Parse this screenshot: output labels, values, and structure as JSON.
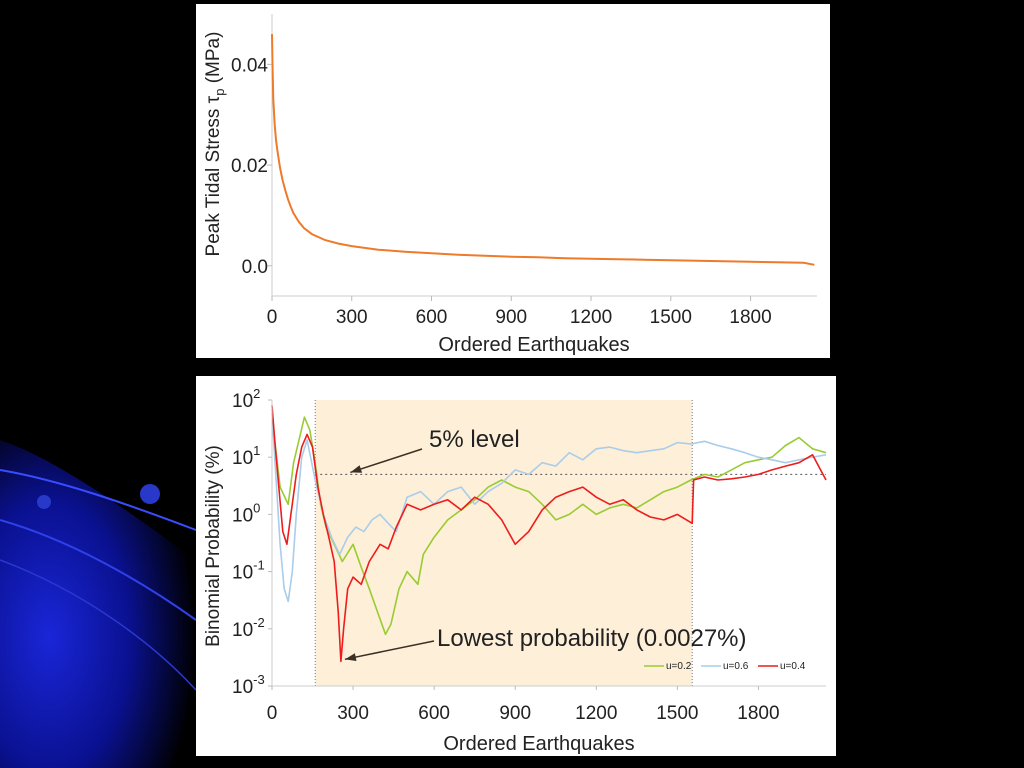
{
  "colors": {
    "background": "#000000",
    "stress_line": "#ee7a2a",
    "u02": "#99cc33",
    "u06": "#a9cdea",
    "u04": "#ee1c1c",
    "highlight": "#fdefd8",
    "arrow": "#3a3024"
  },
  "chart_data": [
    {
      "type": "line",
      "xlabel": "Ordered Earthquakes",
      "ylabel_main": "Peak Tidal Stress τ",
      "ylabel_sub": "p",
      "ylabel_unit": " (MPa)",
      "xlim": [
        0,
        2050
      ],
      "ylim": [
        -0.006,
        0.05
      ],
      "x_ticks": [
        0,
        300,
        600,
        900,
        1200,
        1500,
        1800
      ],
      "x_tick_labels": [
        "0",
        "300",
        "600",
        "900",
        "1200",
        "1500",
        "1800"
      ],
      "y_ticks": [
        0.0,
        0.02,
        0.04
      ],
      "y_tick_labels": [
        "0.0",
        "0.02",
        "0.04"
      ],
      "grid": false,
      "series": [
        {
          "color": "#ee7a2a",
          "x": [
            0,
            2,
            5,
            10,
            15,
            20,
            30,
            40,
            50,
            60,
            70,
            80,
            100,
            120,
            150,
            200,
            250,
            300,
            400,
            500,
            600,
            700,
            800,
            900,
            1000,
            1100,
            1200,
            1300,
            1400,
            1500,
            1600,
            1700,
            1800,
            1900,
            2000,
            2040
          ],
          "y": [
            0.046,
            0.04,
            0.033,
            0.028,
            0.025,
            0.023,
            0.0195,
            0.017,
            0.015,
            0.0132,
            0.0118,
            0.0105,
            0.0088,
            0.0075,
            0.0063,
            0.0051,
            0.0044,
            0.0039,
            0.0032,
            0.0028,
            0.0025,
            0.0022,
            0.002,
            0.0018,
            0.0017,
            0.0015,
            0.0014,
            0.0013,
            0.0012,
            0.0011,
            0.001,
            0.0009,
            0.0008,
            0.0007,
            0.0006,
            0.0002
          ]
        }
      ]
    },
    {
      "type": "line",
      "xlabel": "Ordered Earthquakes",
      "ylabel": "Binomial Probability (%)",
      "y_scale": "log",
      "xlim": [
        0,
        2050
      ],
      "ylim": [
        0.001,
        100
      ],
      "x_ticks": [
        0,
        300,
        600,
        900,
        1200,
        1500,
        1800
      ],
      "x_tick_labels": [
        "0",
        "300",
        "600",
        "900",
        "1200",
        "1500",
        "1800"
      ],
      "y_ticks": [
        {
          "value": 100,
          "base": "10",
          "exp": "2"
        },
        {
          "value": 10,
          "base": "10",
          "exp": "1"
        },
        {
          "value": 1,
          "base": "10",
          "exp": "0"
        },
        {
          "value": 0.1,
          "base": "10",
          "exp": "-1"
        },
        {
          "value": 0.01,
          "base": "10",
          "exp": "-2"
        },
        {
          "value": 0.001,
          "base": "10",
          "exp": "-3"
        }
      ],
      "grid": false,
      "highlight_range": [
        160,
        1555
      ],
      "reference_level": 5,
      "annotations": [
        {
          "text": "5% level",
          "point": [
            290,
            5
          ]
        },
        {
          "text": "Lowest probability (0.0027%)",
          "point": [
            255,
            0.0027
          ]
        }
      ],
      "legend_position": "bottom-right",
      "series": [
        {
          "name": "u=0.2",
          "color": "#99cc33",
          "x": [
            0,
            10,
            30,
            60,
            80,
            100,
            120,
            140,
            160,
            180,
            200,
            230,
            260,
            300,
            330,
            360,
            390,
            420,
            440,
            470,
            500,
            540,
            560,
            600,
            650,
            700,
            750,
            800,
            850,
            900,
            950,
            1000,
            1050,
            1100,
            1150,
            1200,
            1250,
            1300,
            1350,
            1400,
            1450,
            1500,
            1550,
            1600,
            1650,
            1700,
            1750,
            1800,
            1850,
            1900,
            1950,
            2000,
            2050
          ],
          "y": [
            70,
            20,
            3,
            1.5,
            8,
            20,
            50,
            30,
            8,
            1.5,
            0.6,
            0.3,
            0.15,
            0.3,
            0.12,
            0.05,
            0.02,
            0.008,
            0.012,
            0.05,
            0.1,
            0.06,
            0.2,
            0.4,
            0.8,
            1.2,
            1.8,
            3,
            4,
            3,
            2.5,
            1.5,
            0.8,
            1,
            1.5,
            1,
            1.3,
            1.5,
            1.3,
            1.8,
            2.5,
            3,
            4,
            5,
            4.5,
            6,
            8,
            9,
            10,
            16,
            22,
            14,
            12
          ]
        },
        {
          "name": "u=0.6",
          "color": "#a9cdea",
          "x": [
            0,
            10,
            30,
            45,
            60,
            75,
            90,
            110,
            130,
            160,
            190,
            220,
            250,
            280,
            310,
            340,
            370,
            400,
            430,
            460,
            500,
            550,
            600,
            650,
            700,
            750,
            800,
            850,
            900,
            950,
            1000,
            1050,
            1100,
            1150,
            1200,
            1250,
            1300,
            1350,
            1400,
            1450,
            1500,
            1550,
            1600,
            1650,
            1700,
            1750,
            1800,
            1850,
            1900,
            1950,
            2000,
            2050
          ],
          "y": [
            60,
            10,
            0.3,
            0.05,
            0.03,
            0.1,
            1,
            10,
            20,
            4,
            1,
            0.4,
            0.2,
            0.4,
            0.6,
            0.5,
            0.8,
            1,
            0.7,
            0.5,
            2,
            2.5,
            1.5,
            2.5,
            3,
            1.5,
            2.5,
            3.5,
            6,
            5,
            8,
            7,
            12,
            9,
            14,
            15,
            13,
            12,
            13,
            14,
            18,
            17,
            19,
            16,
            14,
            12,
            10,
            9,
            8,
            9,
            10,
            11
          ]
        },
        {
          "name": "u=0.4",
          "color": "#ee1c1c",
          "x": [
            0,
            10,
            25,
            40,
            55,
            70,
            90,
            110,
            130,
            150,
            170,
            190,
            210,
            230,
            245,
            255,
            265,
            280,
            300,
            330,
            360,
            400,
            430,
            460,
            500,
            550,
            600,
            650,
            700,
            750,
            800,
            850,
            900,
            950,
            1000,
            1050,
            1100,
            1150,
            1200,
            1250,
            1300,
            1350,
            1400,
            1450,
            1500,
            1555,
            1560,
            1600,
            1650,
            1700,
            1750,
            1800,
            1850,
            1900,
            1950,
            2000,
            2050
          ],
          "y": [
            80,
            20,
            3,
            0.5,
            0.3,
            1,
            5,
            15,
            25,
            15,
            3,
            1,
            0.4,
            0.15,
            0.02,
            0.0027,
            0.01,
            0.05,
            0.08,
            0.06,
            0.15,
            0.3,
            0.25,
            0.6,
            1.5,
            1.2,
            1.5,
            1.8,
            1.2,
            2,
            1.5,
            0.8,
            0.3,
            0.5,
            1.2,
            2,
            2.5,
            3,
            2,
            1.5,
            1.8,
            1.2,
            0.9,
            0.8,
            1,
            0.7,
            4,
            4.5,
            4,
            4.2,
            4.5,
            5,
            6,
            7,
            8,
            11,
            4
          ]
        }
      ]
    }
  ]
}
